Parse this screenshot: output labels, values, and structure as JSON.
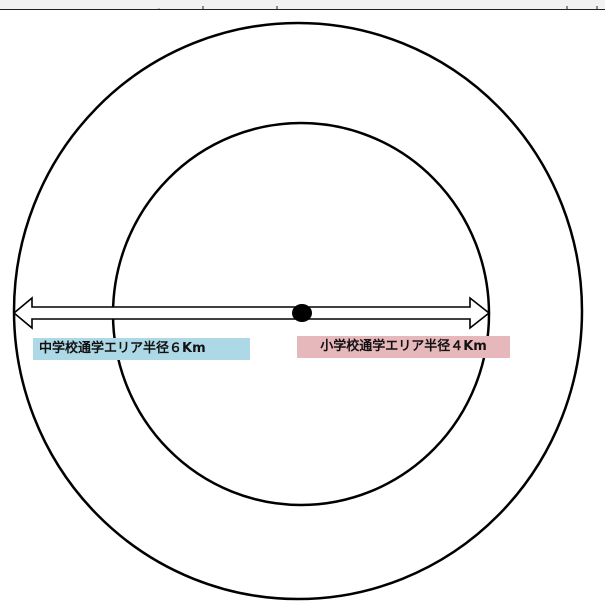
{
  "diagram": {
    "labels": {
      "middle_school": "中学校通学エリア半径６Km",
      "elementary_school": "小学校通学エリア半径４Km"
    },
    "colors": {
      "middle_school_label_bg": "#add8e6",
      "elementary_school_label_bg": "#e6b8bb",
      "stroke": "#000000",
      "background": "#ffffff"
    },
    "elements": {
      "outer_circle": "middle-school-area-circle",
      "inner_circle": "elementary-school-area-circle",
      "center_point": "school-location-dot",
      "arrow": "radius-double-arrow"
    }
  }
}
